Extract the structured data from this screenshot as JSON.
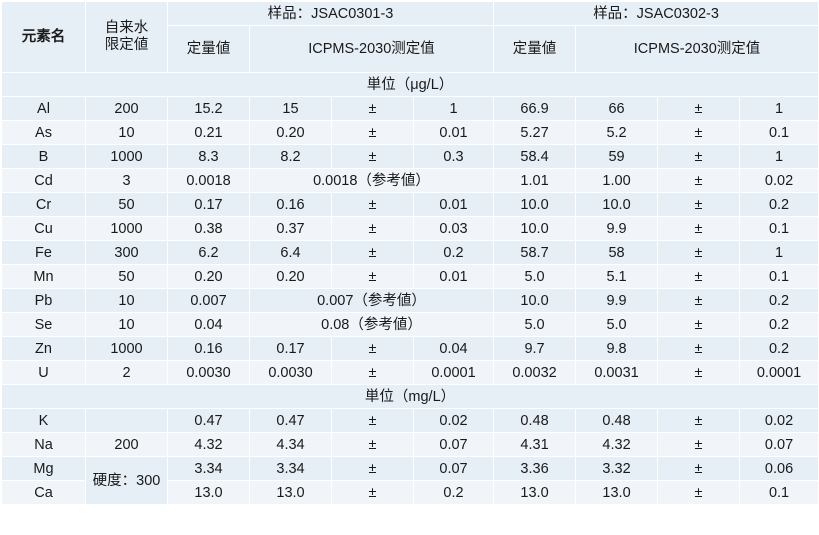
{
  "header": {
    "element": "元素名",
    "limit_line1": "自来水",
    "limit_line2": "限定値",
    "sample1": "样品：JSAC0301-3",
    "sample2": "样品：JSAC0302-3",
    "quant": "定量値",
    "icpms": "ICPMS-2030测定值"
  },
  "units": {
    "ugl": "単位（μg/L）",
    "mgl": "単位（mg/L）"
  },
  "rows_ug": [
    {
      "el": "Al",
      "lim": "200",
      "q1": "15.2",
      "m1": "15",
      "pm1": "±",
      "u1": "1",
      "q2": "66.9",
      "m2": "66",
      "pm2": "±",
      "u2": "1"
    },
    {
      "el": "As",
      "lim": "10",
      "q1": "0.21",
      "m1": "0.20",
      "pm1": "±",
      "u1": "0.01",
      "q2": "5.27",
      "m2": "5.2",
      "pm2": "±",
      "u2": "0.1"
    },
    {
      "el": "B",
      "lim": "1000",
      "q1": "8.3",
      "m1": "8.2",
      "pm1": "±",
      "u1": "0.3",
      "q2": "58.4",
      "m2": "59",
      "pm2": "±",
      "u2": "1"
    },
    {
      "el": "Cd",
      "lim": "3",
      "q1": "0.0018",
      "ref1": "0.0018（参考値）",
      "q2": "1.01",
      "m2": "1.00",
      "pm2": "±",
      "u2": "0.02"
    },
    {
      "el": "Cr",
      "lim": "50",
      "q1": "0.17",
      "m1": "0.16",
      "pm1": "±",
      "u1": "0.01",
      "q2": "10.0",
      "m2": "10.0",
      "pm2": "±",
      "u2": "0.2"
    },
    {
      "el": "Cu",
      "lim": "1000",
      "q1": "0.38",
      "m1": "0.37",
      "pm1": "±",
      "u1": "0.03",
      "q2": "10.0",
      "m2": "9.9",
      "pm2": "±",
      "u2": "0.1"
    },
    {
      "el": "Fe",
      "lim": "300",
      "q1": "6.2",
      "m1": "6.4",
      "pm1": "±",
      "u1": "0.2",
      "q2": "58.7",
      "m2": "58",
      "pm2": "±",
      "u2": "1"
    },
    {
      "el": "Mn",
      "lim": "50",
      "q1": "0.20",
      "m1": "0.20",
      "pm1": "±",
      "u1": "0.01",
      "q2": "5.0",
      "m2": "5.1",
      "pm2": "±",
      "u2": "0.1"
    },
    {
      "el": "Pb",
      "lim": "10",
      "q1": "0.007",
      "ref1": "0.007（参考値）",
      "q2": "10.0",
      "m2": "9.9",
      "pm2": "±",
      "u2": "0.2"
    },
    {
      "el": "Se",
      "lim": "10",
      "q1": "0.04",
      "ref1": "0.08（参考値）",
      "q2": "5.0",
      "m2": "5.0",
      "pm2": "±",
      "u2": "0.2"
    },
    {
      "el": "Zn",
      "lim": "1000",
      "q1": "0.16",
      "m1": "0.17",
      "pm1": "±",
      "u1": "0.04",
      "q2": "9.7",
      "m2": "9.8",
      "pm2": "±",
      "u2": "0.2"
    },
    {
      "el": "U",
      "lim": "2",
      "q1": "0.0030",
      "m1": "0.0030",
      "pm1": "±",
      "u1": "0.0001",
      "q2": "0.0032",
      "m2": "0.0031",
      "pm2": "±",
      "u2": "0.0001"
    }
  ],
  "rows_mg": [
    {
      "el": "K",
      "q1": "0.47",
      "m1": "0.47",
      "pm1": "±",
      "u1": "0.02",
      "q2": "0.48",
      "m2": "0.48",
      "pm2": "±",
      "u2": "0.02"
    },
    {
      "el": "Na",
      "lim": "200",
      "q1": "4.32",
      "m1": "4.34",
      "pm1": "±",
      "u1": "0.07",
      "q2": "4.31",
      "m2": "4.32",
      "pm2": "±",
      "u2": "0.07"
    },
    {
      "el": "Mg",
      "q1": "3.34",
      "m1": "3.34",
      "pm1": "±",
      "u1": "0.07",
      "q2": "3.36",
      "m2": "3.32",
      "pm2": "±",
      "u2": "0.06"
    },
    {
      "el": "Ca",
      "q1": "13.0",
      "m1": "13.0",
      "pm1": "±",
      "u1": "0.2",
      "q2": "13.0",
      "m2": "13.0",
      "pm2": "±",
      "u2": "0.1"
    }
  ],
  "hardness": "硬度：300"
}
